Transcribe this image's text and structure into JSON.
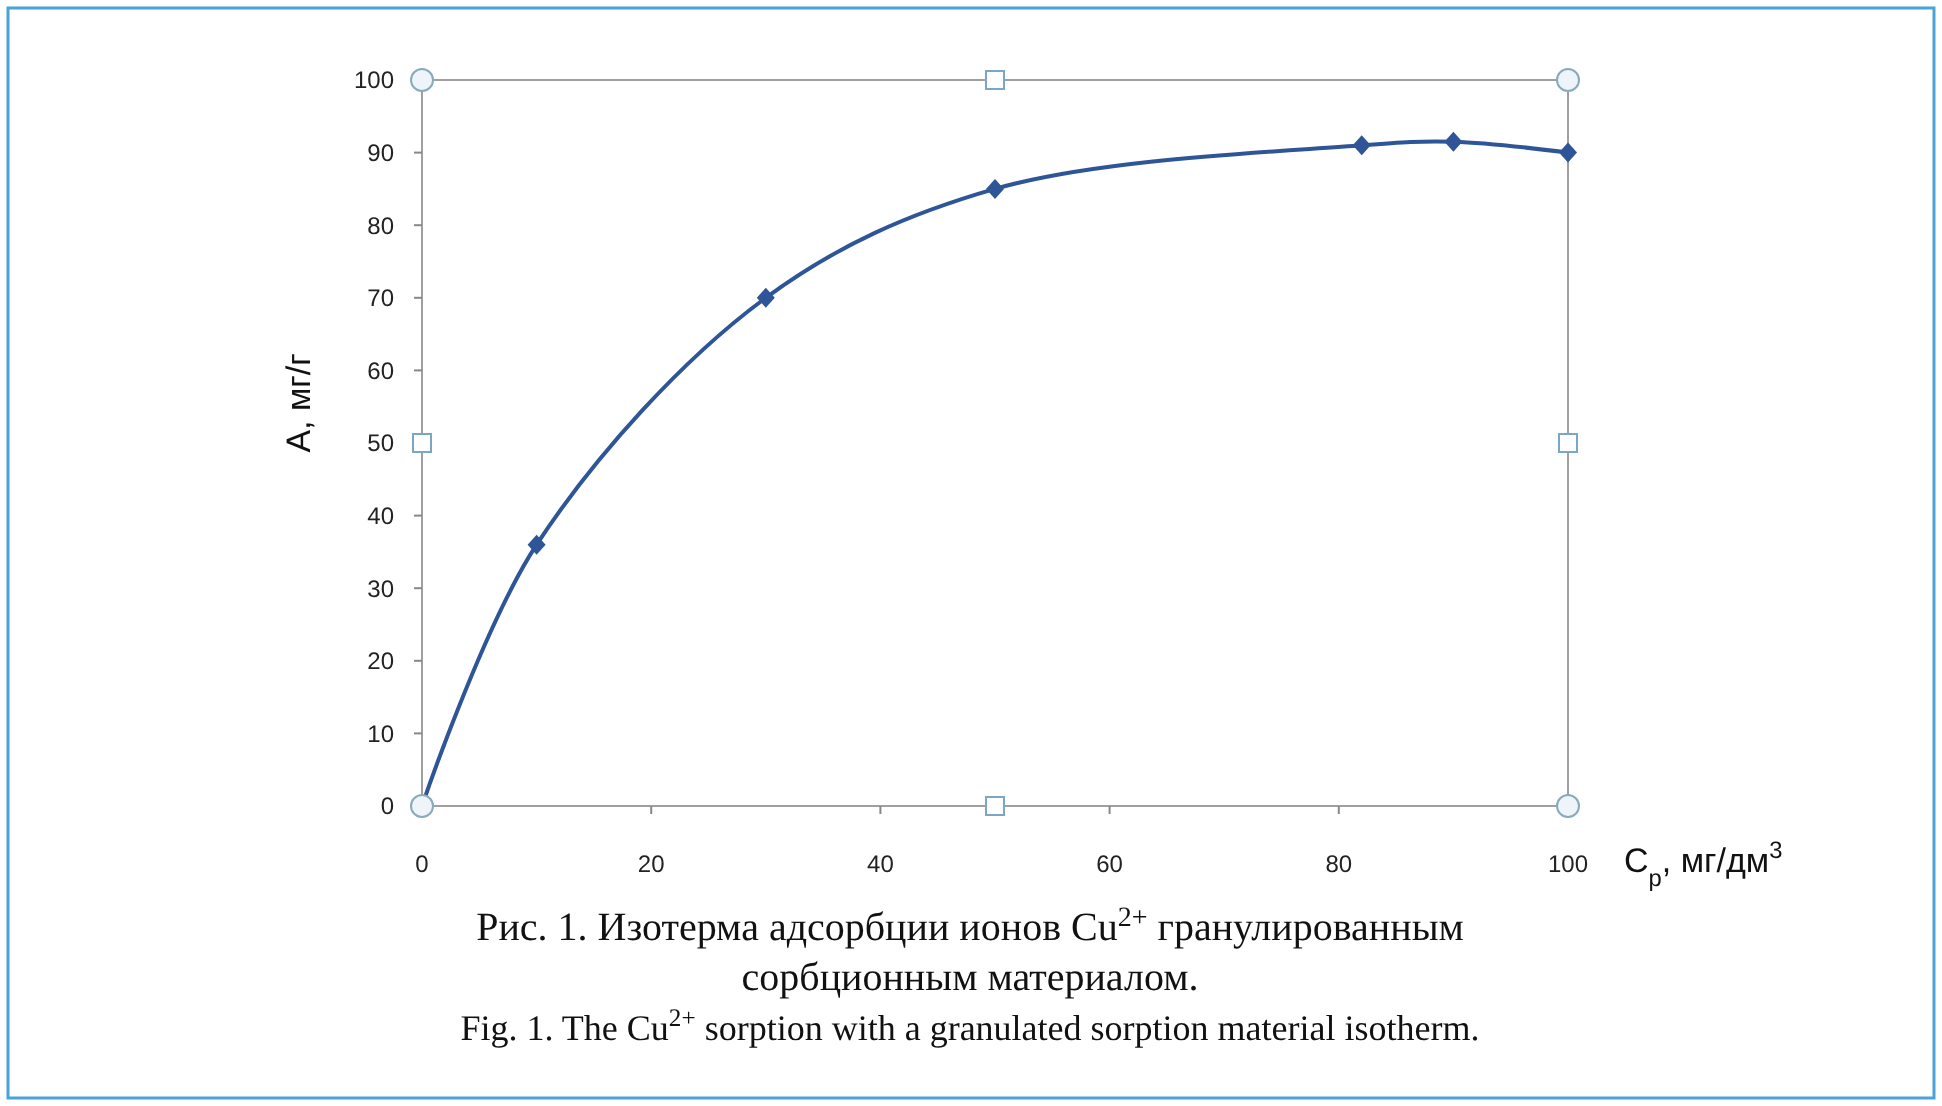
{
  "chart_data": {
    "type": "line",
    "xlabel": "C$_{p}$, мг/дм$^{3}$",
    "ylabel": "А, мг/г",
    "x": [
      0,
      10,
      30,
      50,
      82,
      90,
      100
    ],
    "series": [
      {
        "color": "#2e5597",
        "values": [
          0,
          36,
          70,
          85,
          91,
          91.5,
          90
        ]
      }
    ],
    "xlim": [
      0,
      100
    ],
    "xticks": [
      0,
      20,
      40,
      60,
      80,
      100
    ],
    "ylim": [
      0,
      100
    ],
    "yticks": [
      0,
      10,
      20,
      30,
      40,
      50,
      60,
      70,
      80,
      90,
      100
    ],
    "grid": false,
    "marker": "diamond",
    "line_style": "solid",
    "annotations": [
      "Рис. 1. Изотерма адсорбции ионов Cu$^{2+}$ гранулированным сорбционным материалом.",
      "Fig. 1. The Cu$^{2+}$ sorption with a granulated sorption material isotherm."
    ]
  }
}
